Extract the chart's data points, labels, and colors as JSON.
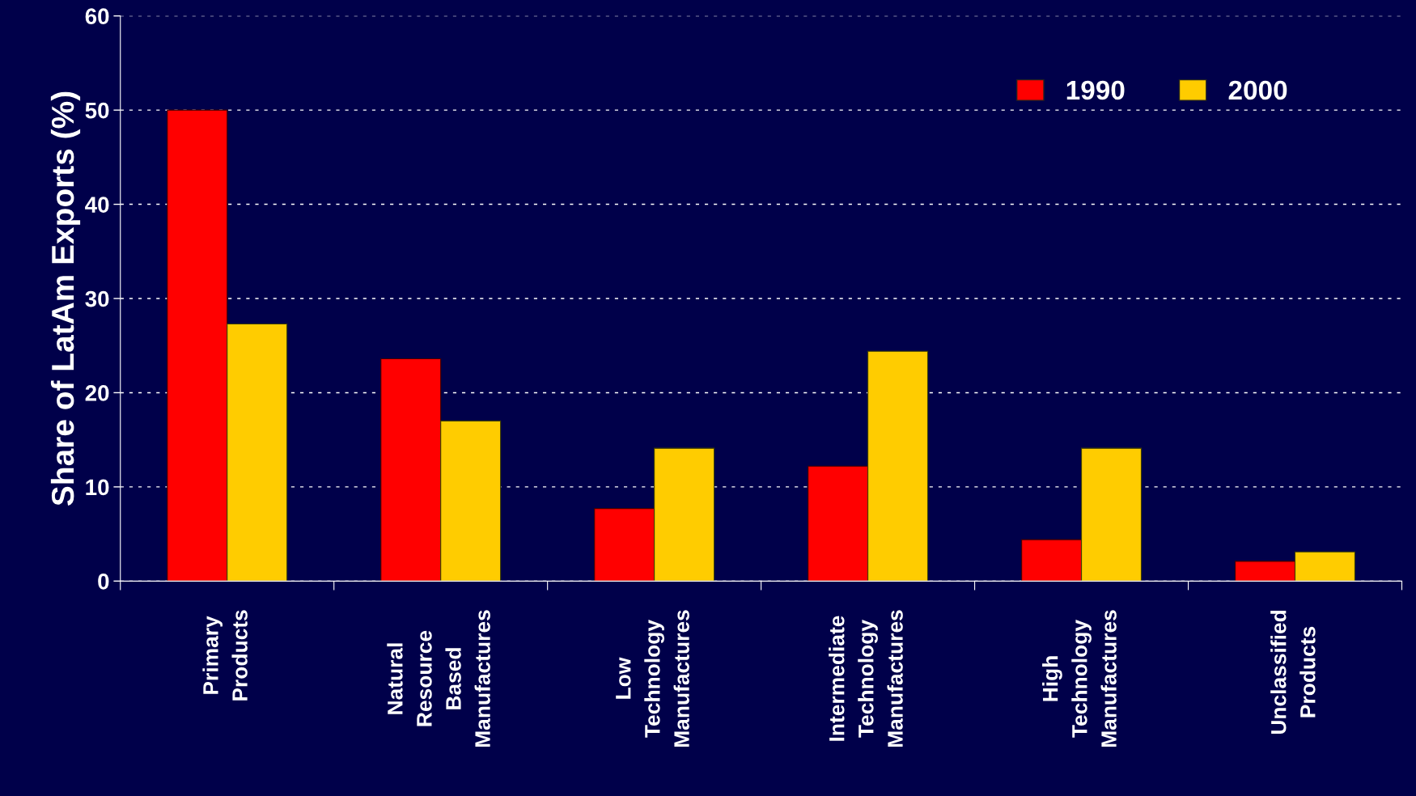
{
  "chart_data": {
    "type": "bar",
    "ylabel": "Share of LatAm Exports (%)",
    "categories": [
      "Primary\nProducts",
      "Natural\nResource\nBased\nManufactures",
      "Low\nTechnology\nManufactures",
      "Intermediate\nTechnology\nManufactures",
      "High\nTechnology\nManufactures",
      "Unclassified\nProducts"
    ],
    "series": [
      {
        "name": "1990",
        "color": "#ff0000",
        "values": [
          50,
          23.6,
          7.7,
          12.2,
          4.4,
          2.1
        ]
      },
      {
        "name": "2000",
        "color": "#ffcc00",
        "values": [
          27.3,
          17.0,
          14.1,
          24.4,
          14.1,
          3.1
        ]
      }
    ],
    "ylim": [
      0,
      60
    ],
    "yticks": [
      0,
      10,
      20,
      30,
      40,
      50,
      60
    ],
    "grid": "y",
    "legend": "top right"
  }
}
